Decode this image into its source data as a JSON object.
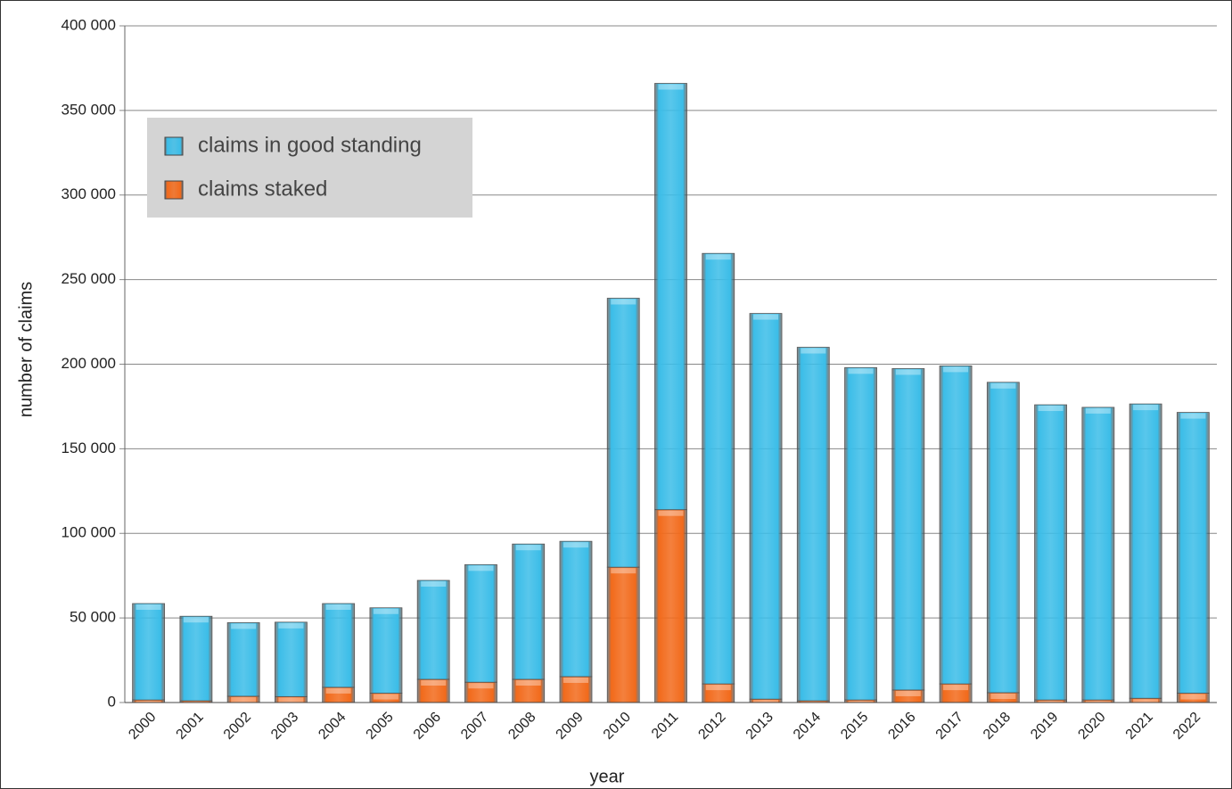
{
  "chart_data": {
    "type": "bar",
    "stacked": true,
    "x_label": "year",
    "y_label": "number of claims",
    "categories": [
      "2000",
      "2001",
      "2002",
      "2003",
      "2004",
      "2005",
      "2006",
      "2007",
      "2008",
      "2009",
      "2010",
      "2011",
      "2012",
      "2013",
      "2014",
      "2015",
      "2016",
      "2017",
      "2018",
      "2019",
      "2020",
      "2021",
      "2022"
    ],
    "series": [
      {
        "name": "claims in good standing",
        "color": "#3bbde8",
        "values": [
          57000,
          50000,
          43500,
          44000,
          49500,
          50500,
          58500,
          69500,
          80000,
          80000,
          159000,
          252000,
          254500,
          228000,
          209000,
          196500,
          190000,
          188000,
          183500,
          174500,
          173000,
          174000,
          166000
        ]
      },
      {
        "name": "claims staked",
        "color": "#f26a1b",
        "values": [
          1500,
          1000,
          3700,
          3500,
          9000,
          5500,
          13700,
          12000,
          13700,
          15300,
          80000,
          114000,
          11000,
          2000,
          1000,
          1500,
          7400,
          11000,
          5800,
          1500,
          1500,
          2500,
          5500
        ]
      }
    ],
    "ylim": [
      0,
      400000
    ],
    "yticks": [
      0,
      {
        "value": 50000,
        "label": "50 000"
      },
      {
        "value": 100000,
        "label": "100 000"
      },
      {
        "value": 150000,
        "label": "150 000"
      },
      {
        "value": 200000,
        "label": "200 000"
      },
      {
        "value": 250000,
        "label": "250 000"
      },
      {
        "value": 300000,
        "label": "300 000"
      },
      {
        "value": 350000,
        "label": "350 000"
      },
      {
        "value": 400000,
        "label": "400 000"
      }
    ],
    "grid": true,
    "legend": "upper left"
  }
}
